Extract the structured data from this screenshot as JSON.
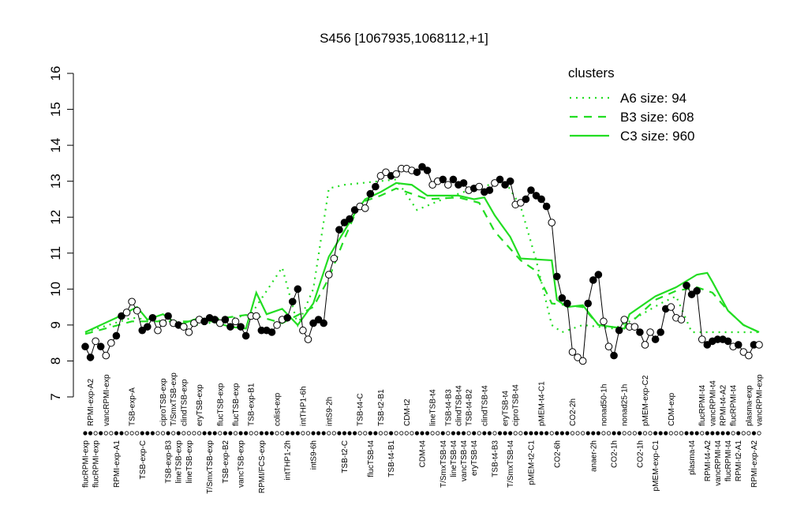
{
  "chart_data": {
    "type": "line",
    "title": "S456 [1067935,1068112,+1]",
    "categories": [
      "flucRPMI-exp",
      "RPMI-exp-A2",
      "flucRPMI-exp",
      null,
      "vancRPMI-exp",
      null,
      "RPMI-exp-A1",
      null,
      null,
      "TSB-exp-A",
      null,
      "TSB-exp-C",
      null,
      null,
      null,
      "ciproTSB-exp",
      "TSB-exp-B3",
      "T/SmxTSB-exp",
      "lineTSB-exp",
      "clindTSB-exp",
      "lineTSB-exp",
      null,
      "eryTSB-exp",
      null,
      "T/SmxTSB-exp",
      null,
      "flucTSB-exp",
      "TSB-exp-B2",
      null,
      "flucTSB-exp",
      "vancTSB-exp",
      null,
      "TSB-exp-B1",
      null,
      "RPMI/FCS-exp",
      null,
      null,
      "colist-exp",
      null,
      "intTHP1-2h",
      null,
      null,
      "intTHP1-6h",
      null,
      "intS9-6h",
      null,
      null,
      "intS9-2h",
      null,
      null,
      "TSB-t2-C",
      null,
      null,
      "TSB-t4-C",
      null,
      "flucTSB-t4",
      null,
      "TSB-t2-B1",
      null,
      "TSB-t4-B1",
      null,
      null,
      "CDM-t2",
      null,
      null,
      "CDM-t4",
      null,
      "lineTSB-t4",
      null,
      "T/SmxTSB-t4",
      "TSB-t4-B3",
      "lineTSB-t4",
      "clindTSB-t4",
      "vancTSB-t4",
      "TSB-t4-B2",
      "eryTSB-t4",
      null,
      "clindTSB-t4",
      null,
      "TSB-t4-B3",
      null,
      "eryTSB-t4",
      "T/SmxTSB-t4",
      "ciproTSB-t4",
      null,
      null,
      "pMEM-t2-C1",
      null,
      "pMEM-t4-C1",
      null,
      null,
      "CO2-6h",
      null,
      null,
      "CO2-2h",
      null,
      null,
      null,
      "anaer-2h",
      null,
      "nonad50-1h",
      null,
      "CO2-1h",
      null,
      "nonad25-1h",
      null,
      null,
      "CO2-1h",
      "pMEM-exp-C2",
      null,
      "pMEM-exp-C1",
      null,
      null,
      "CDM-exp",
      null,
      null,
      null,
      "plasma-t4",
      null,
      "flucRPMI-t4",
      "RPMI-t4-A2",
      "vancRPMI-t4",
      "vancRPMI-t4",
      "RPMI-t4-A2",
      "flucRPMI-t4",
      "flucRPMI-t4",
      "RPMI-t2-A1",
      null,
      "plasma-exp",
      "RPMI-exp-A2",
      "vancRPMI-exp"
    ],
    "values": [
      8.4,
      8.1,
      8.55,
      8.4,
      8.15,
      8.5,
      8.7,
      9.25,
      9.35,
      9.65,
      9.4,
      8.85,
      8.95,
      9.2,
      8.85,
      9.05,
      9.25,
      9.05,
      9.0,
      8.95,
      8.8,
      9.05,
      9.15,
      9.1,
      9.2,
      9.15,
      9.05,
      9.15,
      8.95,
      9.1,
      8.95,
      8.7,
      9.25,
      9.25,
      8.85,
      8.85,
      8.8,
      9.0,
      9.15,
      9.2,
      9.65,
      10.0,
      8.85,
      8.6,
      9.05,
      9.15,
      9.05,
      10.4,
      10.85,
      11.65,
      11.85,
      11.95,
      12.2,
      12.3,
      12.25,
      12.65,
      12.85,
      13.15,
      13.25,
      13.15,
      13.2,
      13.35,
      13.35,
      13.3,
      13.25,
      13.4,
      13.3,
      12.9,
      13.0,
      13.05,
      12.9,
      13.05,
      12.9,
      12.95,
      12.75,
      12.8,
      12.85,
      12.7,
      12.75,
      12.95,
      13.05,
      12.9,
      13.0,
      12.35,
      12.4,
      12.5,
      12.75,
      12.6,
      12.5,
      12.3,
      11.85,
      10.35,
      9.75,
      9.6,
      8.25,
      8.1,
      8.0,
      9.6,
      10.25,
      10.4,
      9.1,
      8.4,
      8.15,
      8.85,
      9.15,
      8.95,
      8.95,
      8.8,
      8.45,
      8.8,
      8.6,
      8.8,
      9.45,
      9.5,
      9.2,
      9.15,
      10.1,
      9.85,
      9.95,
      8.6,
      8.45,
      8.55,
      8.6,
      8.6,
      8.55,
      8.4,
      8.45,
      8.25,
      8.15,
      8.45,
      8.45
    ],
    "filled": [
      true,
      true,
      false,
      true,
      false,
      false,
      true,
      true,
      false,
      false,
      false,
      true,
      true,
      true,
      false,
      false,
      true,
      false,
      true,
      false,
      false,
      false,
      false,
      true,
      true,
      true,
      false,
      true,
      true,
      false,
      true,
      true,
      false,
      false,
      true,
      true,
      true,
      false,
      false,
      true,
      true,
      true,
      false,
      false,
      true,
      true,
      true,
      false,
      false,
      true,
      true,
      true,
      true,
      false,
      false,
      true,
      true,
      false,
      false,
      true,
      false,
      false,
      false,
      false,
      true,
      true,
      true,
      false,
      false,
      true,
      false,
      true,
      true,
      true,
      false,
      true,
      false,
      true,
      true,
      false,
      true,
      true,
      true,
      false,
      false,
      true,
      true,
      true,
      true,
      true,
      false,
      true,
      true,
      true,
      false,
      false,
      false,
      true,
      true,
      true,
      false,
      false,
      true,
      true,
      false,
      false,
      false,
      true,
      false,
      false,
      true,
      true,
      true,
      false,
      false,
      false,
      true,
      true,
      true,
      false,
      true,
      true,
      true,
      true,
      true,
      false,
      true,
      false,
      false,
      true,
      false
    ],
    "color": "#000000",
    "ylim": [
      7,
      16
    ],
    "yticks": [
      7,
      8,
      9,
      10,
      11,
      12,
      13,
      14,
      15,
      16
    ],
    "legend_title": "clusters",
    "series": [
      {
        "name": "A6 size: 94",
        "color": "#22dd22",
        "style": "dotted",
        "x": [
          0,
          9,
          22,
          32,
          38,
          41,
          44,
          47,
          50,
          60,
          64,
          69,
          75,
          81,
          84,
          87,
          90,
          92,
          96,
          102,
          105,
          111,
          114,
          117,
          124,
          130
        ],
        "values": [
          8.8,
          9.2,
          9.0,
          9.3,
          10.6,
          9.0,
          10.0,
          12.8,
          12.9,
          13.05,
          12.2,
          12.5,
          12.8,
          13.0,
          12.3,
          10.8,
          9.0,
          8.8,
          9.0,
          8.9,
          9.1,
          9.6,
          9.8,
          8.8,
          8.8,
          8.8
        ]
      },
      {
        "name": "B3 size: 608",
        "color": "#22dd22",
        "style": "dashed",
        "x": [
          0,
          9,
          22,
          32,
          38,
          44,
          47,
          50,
          53,
          57,
          60,
          66,
          72,
          76,
          79,
          84,
          87,
          90,
          96,
          99,
          104,
          110,
          114,
          118,
          121,
          124,
          127,
          130
        ],
        "values": [
          8.75,
          9.1,
          9.1,
          9.3,
          9.05,
          9.5,
          10.3,
          11.4,
          12.4,
          12.6,
          12.8,
          12.5,
          12.55,
          12.4,
          11.6,
          10.8,
          10.5,
          9.6,
          9.5,
          9.0,
          8.9,
          9.7,
          9.95,
          10.05,
          9.9,
          9.4,
          9.0,
          8.8
        ]
      },
      {
        "name": "C3 size: 960",
        "color": "#22dd22",
        "style": "solid",
        "x": [
          0,
          6,
          10,
          12,
          15,
          18,
          22,
          28,
          31,
          33,
          35,
          38,
          41,
          44,
          47,
          52,
          54,
          57,
          60,
          63,
          66,
          72,
          75,
          77,
          79,
          82,
          84,
          90,
          91,
          93,
          96,
          99,
          104,
          105,
          110,
          114,
          118,
          120,
          121,
          124,
          127,
          130
        ],
        "values": [
          8.8,
          9.2,
          9.5,
          9.15,
          9.3,
          9.0,
          9.2,
          8.95,
          8.9,
          9.9,
          9.3,
          9.45,
          9.0,
          9.6,
          10.9,
          12.1,
          12.5,
          12.7,
          12.95,
          12.9,
          12.6,
          12.6,
          12.5,
          12.55,
          12.05,
          11.45,
          10.85,
          10.8,
          9.7,
          9.5,
          9.55,
          9.0,
          8.9,
          9.3,
          9.8,
          10.05,
          10.4,
          10.45,
          10.2,
          9.4,
          9.0,
          8.8
        ]
      }
    ]
  }
}
